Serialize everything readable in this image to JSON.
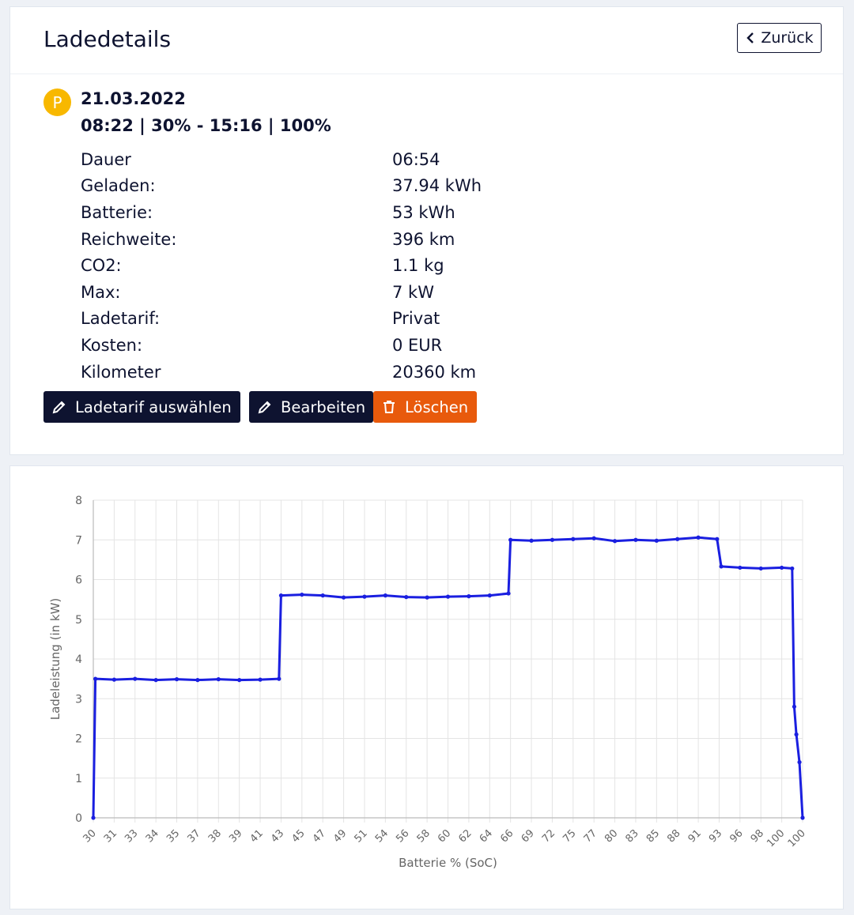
{
  "header": {
    "title": "Ladedetails",
    "back_label": "Zurück"
  },
  "session": {
    "badge": "P",
    "date": "21.03.2022",
    "summary": "08:22 | 30% - 15:16 | 100%",
    "details": [
      {
        "label": "Dauer",
        "value": "06:54"
      },
      {
        "label": "Geladen:",
        "value": "37.94 kWh"
      },
      {
        "label": "Batterie:",
        "value": "53 kWh"
      },
      {
        "label": "Reichweite:",
        "value": "396 km"
      },
      {
        "label": "CO2:",
        "value": "1.1 kg"
      },
      {
        "label": "Max:",
        "value": "7 kW"
      },
      {
        "label": "Ladetarif:",
        "value": "Privat"
      },
      {
        "label": "Kosten:",
        "value": "0 EUR"
      },
      {
        "label": "Kilometer",
        "value": "20360 km"
      }
    ]
  },
  "actions": {
    "tarif_label": "Ladetarif auswählen",
    "edit_label": "Bearbeiten",
    "delete_label": "Löschen"
  },
  "colors": {
    "navy": "#0e1330",
    "orange": "#e85a0c",
    "badge": "#f8b800",
    "line": "#1a1fe0"
  },
  "chart_data": {
    "type": "line",
    "xlabel": "Batterie % (SoC)",
    "ylabel": "Ladeleistung (in kW)",
    "ylim": [
      0,
      8
    ],
    "yticks": [
      0,
      1,
      2,
      3,
      4,
      5,
      6,
      7,
      8
    ],
    "xtick_labels": [
      "30",
      "31",
      "33",
      "34",
      "35",
      "37",
      "38",
      "39",
      "41",
      "43",
      "45",
      "47",
      "49",
      "51",
      "54",
      "56",
      "58",
      "60",
      "62",
      "64",
      "66",
      "69",
      "72",
      "75",
      "77",
      "80",
      "83",
      "85",
      "88",
      "91",
      "93",
      "96",
      "98",
      "100",
      "100"
    ],
    "grid": true,
    "series": [
      {
        "points": [
          [
            0,
            0
          ],
          [
            0.1,
            3.5
          ],
          [
            1.0,
            3.48
          ],
          [
            2.0,
            3.5
          ],
          [
            3.0,
            3.47
          ],
          [
            4.0,
            3.49
          ],
          [
            5.0,
            3.47
          ],
          [
            6.0,
            3.49
          ],
          [
            7.0,
            3.47
          ],
          [
            8.0,
            3.48
          ],
          [
            8.9,
            3.5
          ],
          [
            9.0,
            5.6
          ],
          [
            10.0,
            5.62
          ],
          [
            11.0,
            5.6
          ],
          [
            12.0,
            5.55
          ],
          [
            13.0,
            5.57
          ],
          [
            14.0,
            5.6
          ],
          [
            15.0,
            5.56
          ],
          [
            16.0,
            5.55
          ],
          [
            17.0,
            5.57
          ],
          [
            18.0,
            5.58
          ],
          [
            19.0,
            5.6
          ],
          [
            19.9,
            5.65
          ],
          [
            20.0,
            7.0
          ],
          [
            21.0,
            6.98
          ],
          [
            22.0,
            7.0
          ],
          [
            23.0,
            7.02
          ],
          [
            24.0,
            7.04
          ],
          [
            25.0,
            6.97
          ],
          [
            26.0,
            7.0
          ],
          [
            27.0,
            6.98
          ],
          [
            28.0,
            7.02
          ],
          [
            29.0,
            7.06
          ],
          [
            29.9,
            7.02
          ],
          [
            30.1,
            6.33
          ],
          [
            31.0,
            6.3
          ],
          [
            32.0,
            6.28
          ],
          [
            33.0,
            6.3
          ],
          [
            33.5,
            6.28
          ],
          [
            33.6,
            2.8
          ],
          [
            33.7,
            2.1
          ],
          [
            33.85,
            1.4
          ],
          [
            34.0,
            0
          ]
        ]
      }
    ]
  }
}
